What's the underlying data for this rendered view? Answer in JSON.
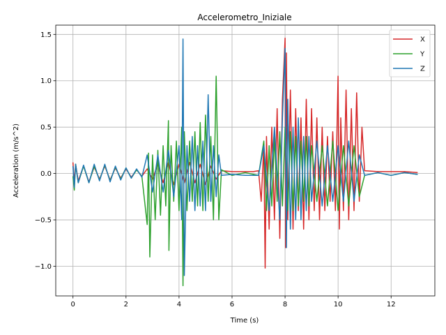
{
  "chart_data": {
    "type": "line",
    "title": "Accelerometro_Iniziale",
    "xlabel": "Time (s)",
    "ylabel": "Acceleration (m/s^2)",
    "xlim": [
      -0.65,
      13.65
    ],
    "ylim": [
      -1.32,
      1.6
    ],
    "x_ticks": [
      0,
      2,
      4,
      6,
      8,
      10,
      12
    ],
    "x_tick_labels": [
      "0",
      "2",
      "4",
      "6",
      "8",
      "10",
      "12"
    ],
    "y_ticks": [
      -1.0,
      -0.5,
      0.0,
      0.5,
      1.0,
      1.5
    ],
    "y_tick_labels": [
      "−1.0",
      "−0.5",
      "0.0",
      "0.5",
      "1.0",
      "1.5"
    ],
    "grid": true,
    "legend_position": "top-right",
    "series": [
      {
        "name": "X",
        "color": "#d62728",
        "x": [
          0,
          0.05,
          0.1,
          0.2,
          0.4,
          0.6,
          0.8,
          1.0,
          1.2,
          1.4,
          1.6,
          1.8,
          2.0,
          2.2,
          2.4,
          2.6,
          2.8,
          3.0,
          3.2,
          3.4,
          3.6,
          3.8,
          4.0,
          4.2,
          4.4,
          4.6,
          4.8,
          5.0,
          5.2,
          5.4,
          5.6,
          6.0,
          6.4,
          6.8,
          7.0,
          7.1,
          7.2,
          7.25,
          7.3,
          7.4,
          7.5,
          7.6,
          7.7,
          7.8,
          7.9,
          8.0,
          8.02,
          8.05,
          8.1,
          8.2,
          8.3,
          8.4,
          8.5,
          8.6,
          8.7,
          8.8,
          8.9,
          9.0,
          9.1,
          9.2,
          9.3,
          9.4,
          9.5,
          9.6,
          9.7,
          9.8,
          9.9,
          10.0,
          10.05,
          10.1,
          10.2,
          10.3,
          10.4,
          10.5,
          10.6,
          10.7,
          10.8,
          10.9,
          11.0,
          11.5,
          12.0,
          12.5,
          13.0
        ],
        "y": [
          0.12,
          -0.1,
          0.1,
          -0.08,
          0.08,
          -0.09,
          0.07,
          -0.06,
          0.08,
          -0.07,
          0.06,
          -0.05,
          0.05,
          -0.04,
          0.04,
          -0.03,
          0.05,
          -0.06,
          0.1,
          -0.1,
          0.12,
          -0.12,
          0.1,
          -0.1,
          0.12,
          -0.1,
          0.1,
          -0.12,
          0.08,
          -0.06,
          0.03,
          0.02,
          0.02,
          0.02,
          0.03,
          -0.3,
          0.3,
          -1.02,
          0.4,
          -0.6,
          0.5,
          -0.5,
          0.7,
          -0.7,
          0.8,
          1.46,
          -0.8,
          1.3,
          -0.5,
          0.9,
          -0.6,
          0.7,
          -0.4,
          0.6,
          -0.6,
          0.8,
          -0.5,
          0.7,
          -0.4,
          0.6,
          -0.5,
          0.5,
          -0.4,
          0.4,
          -0.3,
          0.45,
          -0.4,
          1.05,
          -0.6,
          0.6,
          -0.4,
          0.9,
          -0.5,
          0.7,
          -0.4,
          0.87,
          -0.3,
          0.5,
          0.03,
          0.02,
          0.02,
          0.02,
          0.01
        ]
      },
      {
        "name": "Y",
        "color": "#2ca02c",
        "x": [
          0,
          0.05,
          0.1,
          0.2,
          0.4,
          0.6,
          0.8,
          1.0,
          1.2,
          1.4,
          1.6,
          1.8,
          2.0,
          2.2,
          2.4,
          2.6,
          2.8,
          2.85,
          2.9,
          3.0,
          3.1,
          3.2,
          3.3,
          3.4,
          3.5,
          3.6,
          3.62,
          3.7,
          3.8,
          3.9,
          4.0,
          4.1,
          4.15,
          4.2,
          4.3,
          4.4,
          4.5,
          4.6,
          4.7,
          4.8,
          4.9,
          5.0,
          5.1,
          5.2,
          5.3,
          5.4,
          5.5,
          5.6,
          6.0,
          6.5,
          7.0,
          7.2,
          7.3,
          7.4,
          7.5,
          7.6,
          7.7,
          7.8,
          7.9,
          8.0,
          8.1,
          8.2,
          8.3,
          8.4,
          8.5,
          8.6,
          8.7,
          8.8,
          8.9,
          9.0,
          9.2,
          9.4,
          9.6,
          9.8,
          10.0,
          10.2,
          10.4,
          10.6,
          10.8,
          11.0,
          11.5,
          12.0,
          12.5,
          13.0
        ],
        "y": [
          -0.03,
          -0.18,
          0.1,
          -0.1,
          0.08,
          -0.1,
          0.08,
          -0.07,
          0.09,
          -0.08,
          0.07,
          -0.06,
          0.06,
          -0.05,
          0.04,
          -0.03,
          -0.55,
          0.22,
          -0.9,
          0.2,
          -0.5,
          0.25,
          -0.45,
          0.3,
          -0.35,
          0.57,
          -0.83,
          0.3,
          -0.3,
          0.35,
          -0.4,
          0.5,
          -1.21,
          0.45,
          -0.4,
          0.35,
          -0.3,
          0.45,
          -0.35,
          0.55,
          -0.4,
          0.63,
          -0.3,
          0.4,
          -0.5,
          1.05,
          -0.5,
          0.04,
          -0.02,
          0.01,
          -0.02,
          0.35,
          -0.4,
          0.3,
          -0.35,
          0.4,
          -0.3,
          0.45,
          -0.35,
          0.5,
          -0.4,
          0.45,
          -0.4,
          0.4,
          -0.35,
          0.35,
          -0.3,
          0.4,
          -0.35,
          0.3,
          -0.3,
          0.3,
          -0.35,
          0.35,
          -0.4,
          0.3,
          -0.35,
          0.3,
          -0.25,
          -0.02,
          0.01,
          -0.02,
          0.01,
          -0.01
        ]
      },
      {
        "name": "Z",
        "color": "#1f77b4",
        "x": [
          0,
          0.05,
          0.1,
          0.2,
          0.4,
          0.6,
          0.8,
          1.0,
          1.2,
          1.4,
          1.6,
          1.8,
          2.0,
          2.2,
          2.4,
          2.6,
          2.8,
          3.0,
          3.2,
          3.4,
          3.6,
          3.8,
          4.0,
          4.1,
          4.15,
          4.2,
          4.3,
          4.4,
          4.5,
          4.6,
          4.7,
          4.8,
          4.9,
          5.0,
          5.1,
          5.2,
          5.3,
          5.4,
          5.5,
          5.6,
          6.0,
          6.5,
          7.0,
          7.2,
          7.4,
          7.6,
          7.8,
          7.9,
          8.0,
          8.05,
          8.1,
          8.2,
          8.3,
          8.4,
          8.5,
          8.6,
          8.7,
          8.8,
          8.9,
          9.0,
          9.2,
          9.4,
          9.6,
          9.8,
          10.0,
          10.2,
          10.4,
          10.6,
          10.8,
          11.0,
          11.5,
          12.0,
          12.5,
          13.0
        ],
        "y": [
          0.08,
          -0.15,
          0.1,
          -0.1,
          0.09,
          -0.1,
          0.1,
          -0.08,
          0.1,
          -0.09,
          0.08,
          -0.07,
          0.06,
          -0.05,
          0.05,
          -0.04,
          0.2,
          -0.2,
          0.2,
          -0.2,
          0.25,
          -0.25,
          0.3,
          -0.5,
          1.45,
          -1.1,
          0.3,
          -0.3,
          0.4,
          -0.4,
          0.3,
          -0.35,
          0.35,
          -0.4,
          0.85,
          -0.3,
          0.3,
          -0.25,
          0.2,
          -0.02,
          -0.01,
          -0.02,
          -0.02,
          0.3,
          -0.4,
          0.5,
          -0.5,
          0.6,
          1.35,
          -0.8,
          0.8,
          -0.6,
          0.5,
          -0.5,
          0.6,
          -0.5,
          0.4,
          -0.4,
          0.4,
          -0.3,
          0.35,
          -0.35,
          0.3,
          -0.3,
          0.3,
          -0.3,
          0.35,
          -0.3,
          0.2,
          -0.02,
          0.01,
          -0.02,
          0.01,
          -0.01
        ]
      }
    ]
  }
}
